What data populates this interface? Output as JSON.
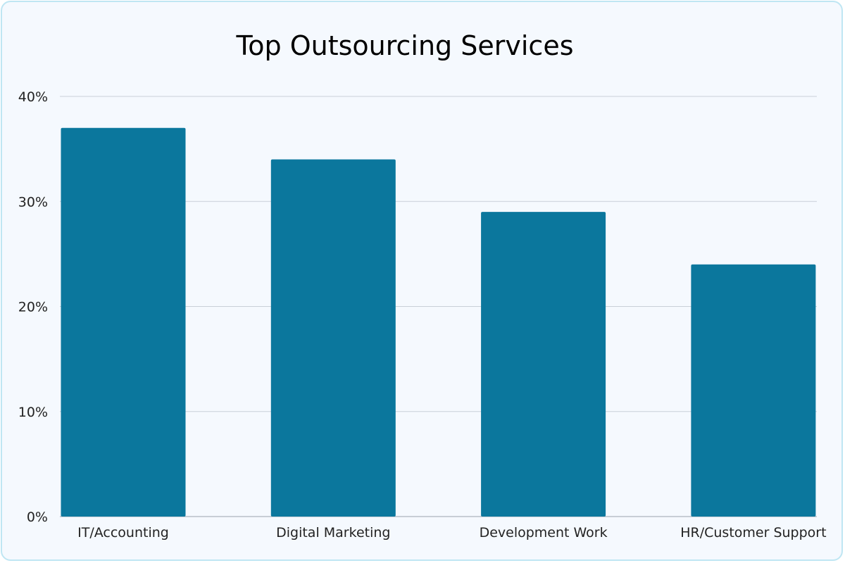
{
  "chart_data": {
    "type": "bar",
    "title": "Top Outsourcing Services",
    "xlabel": "",
    "ylabel": "",
    "categories": [
      "IT/Accounting",
      "Digital Marketing",
      "Development Work",
      "HR/Customer Support"
    ],
    "values": [
      37,
      34,
      29,
      24
    ],
    "ylim": [
      0,
      40
    ],
    "yticks": [
      0,
      10,
      20,
      30,
      40
    ],
    "ytick_labels": [
      "0%",
      "10%",
      "20%",
      "30%",
      "40%"
    ],
    "grid": true,
    "legend": "none",
    "colors": {
      "bar": "#0b779d",
      "grid": "#c9d0d8",
      "background": "#f5f9fe",
      "border": "#bfe6f3"
    }
  }
}
